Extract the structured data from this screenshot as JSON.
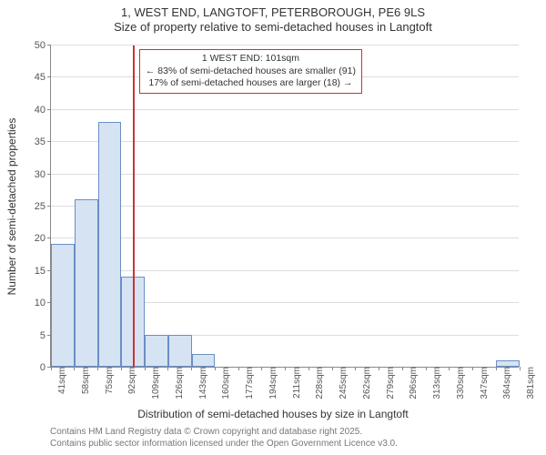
{
  "title_line1": "1, WEST END, LANGTOFT, PETERBOROUGH, PE6 9LS",
  "title_line2": "Size of property relative to semi-detached houses in Langtoft",
  "ylabel": "Number of semi-detached properties",
  "xlabel": "Distribution of semi-detached houses by size in Langtoft",
  "footer_line1": "Contains HM Land Registry data © Crown copyright and database right 2025.",
  "footer_line2": "Contains public sector information licensed under the Open Government Licence v3.0.",
  "chart": {
    "type": "histogram",
    "ylim": [
      0,
      50
    ],
    "ytick_step": 5,
    "bar_color": "#d6e3f3",
    "bar_border": "#6a8fc5",
    "grid_color": "#dddddd",
    "axis_color": "#888888",
    "background_color": "#ffffff",
    "x_unit": "sqm",
    "x_step": 17,
    "x_ticks": [
      41,
      58,
      75,
      92,
      109,
      126,
      143,
      160,
      177,
      194,
      211,
      228,
      245,
      262,
      279,
      296,
      313,
      330,
      347,
      364,
      381
    ],
    "values": [
      19,
      26,
      38,
      14,
      5,
      5,
      2,
      0,
      0,
      0,
      0,
      0,
      0,
      0,
      0,
      0,
      0,
      0,
      0,
      1
    ],
    "reference_line": {
      "x_value": 101,
      "color": "#cc3333",
      "width": 2
    },
    "annotation": {
      "border_color": "#cc3333",
      "line1": "1 WEST END: 101sqm",
      "line2": "← 83% of semi-detached houses are smaller (91)",
      "line3": "17% of semi-detached houses are larger (18) →"
    }
  }
}
